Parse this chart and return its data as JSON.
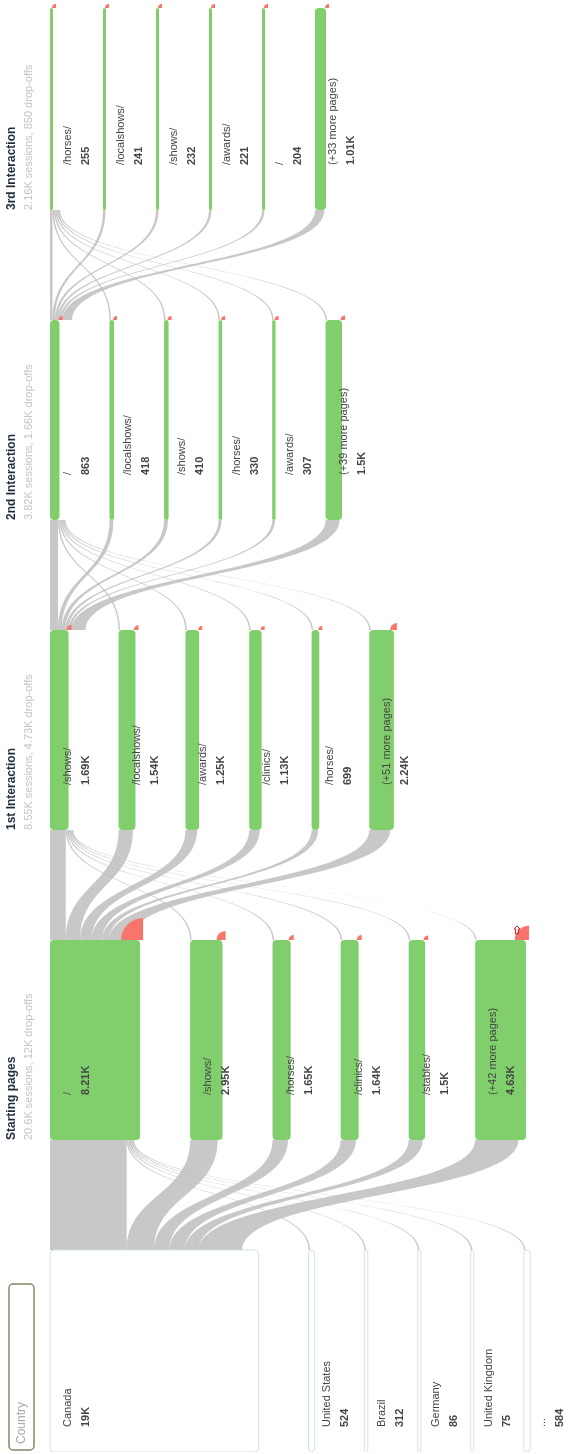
{
  "chart_data": [
    {
      "type": "other",
      "title": "Country",
      "categories": [
        "Canada",
        "United States",
        "Brazil",
        "Germany",
        "United Kingdom",
        "..."
      ],
      "values": [
        19000,
        524,
        312,
        86,
        75,
        584
      ],
      "value_labels": [
        "19K",
        "524",
        "312",
        "86",
        "75",
        "584"
      ],
      "color": "#ffffff"
    },
    {
      "type": "other",
      "title": "Starting pages",
      "subtitle": "20.6K sessions, 12K drop-offs",
      "categories": [
        "/",
        "/shows/",
        "/horses/",
        "/clinics/",
        "/stables/",
        "(+42 more pages)"
      ],
      "values": [
        8210,
        2950,
        1650,
        1640,
        1500,
        4630
      ],
      "value_labels": [
        "8.21K",
        "2.95K",
        "1.65K",
        "1.64K",
        "1.5K",
        "4.63K"
      ],
      "color": "#80cf6c"
    },
    {
      "type": "other",
      "title": "1st Interaction",
      "subtitle": "8.55K sessions, 4.73K drop-offs",
      "categories": [
        "/shows/",
        "/localshows/",
        "/awards/",
        "/clinics/",
        "/horses/",
        "(+51 more pages)"
      ],
      "values": [
        1690,
        1540,
        1250,
        1130,
        699,
        2240
      ],
      "value_labels": [
        "1.69K",
        "1.54K",
        "1.25K",
        "1.13K",
        "699",
        "2.24K"
      ],
      "color": "#80cf6c"
    },
    {
      "type": "other",
      "title": "2nd Interaction",
      "subtitle": "3.82K sessions, 1.66K drop-offs",
      "categories": [
        "/",
        "/localshows/",
        "/shows/",
        "/horses/",
        "/awards/",
        "(+39 more pages)"
      ],
      "values": [
        863,
        418,
        410,
        330,
        307,
        1500
      ],
      "value_labels": [
        "863",
        "418",
        "410",
        "330",
        "307",
        "1.5K"
      ],
      "color": "#80cf6c"
    },
    {
      "type": "other",
      "title": "3rd Interaction",
      "subtitle": "2.16K sessions, 850 drop-offs",
      "categories": [
        "/horses/",
        "/localshows/",
        "/shows/",
        "/awards/",
        "/",
        "(+33 more pages)"
      ],
      "values": [
        255,
        241,
        232,
        221,
        204,
        1010
      ],
      "value_labels": [
        "255",
        "241",
        "232",
        "221",
        "204",
        "1.01K"
      ],
      "color": "#80cf6c"
    }
  ]
}
